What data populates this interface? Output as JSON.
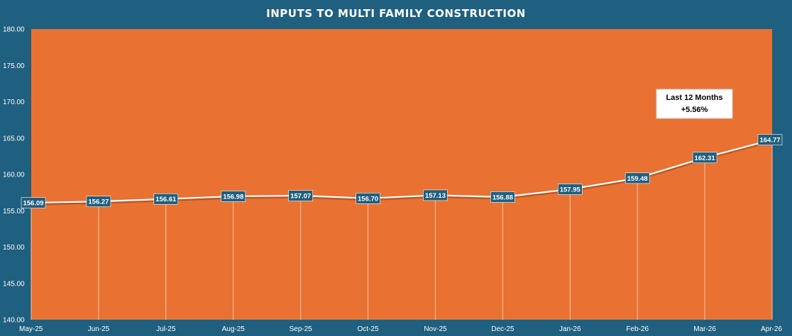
{
  "chart_data": {
    "type": "line",
    "title": "INPUTS TO MULTI FAMILY CONSTRUCTION",
    "xlabel": "",
    "ylabel": "",
    "categories": [
      "May-25",
      "Jun-25",
      "Jul-25",
      "Aug-25",
      "Sep-25",
      "Oct-25",
      "Nov-25",
      "Dec-25",
      "Jan-26",
      "Feb-26",
      "Mar-26",
      "Apr-26"
    ],
    "series": [
      {
        "values": [
          156.09,
          156.27,
          156.61,
          156.98,
          157.07,
          156.7,
          157.13,
          156.88,
          157.95,
          159.48,
          162.31,
          164.77
        ],
        "labels": [
          "156.09",
          "156.27",
          "156.61",
          "156.98",
          "157.07",
          "156.70",
          "157.13",
          "156.88",
          "157.95",
          "159.48",
          "162.31",
          "164.77"
        ]
      }
    ],
    "ylim": [
      140,
      180
    ],
    "yticks": [
      "140.00",
      "145.00",
      "150.00",
      "155.00",
      "160.00",
      "165.00",
      "170.00",
      "175.00",
      "180.00"
    ],
    "grid": false,
    "drop_lines": true,
    "annotation": {
      "line1": "Last 12 Months",
      "line2": "+5.56%"
    },
    "colors": {
      "background": "#1f5f7f",
      "plot_area": "#e97132",
      "line": "#ffffff",
      "label_box": "#1f5f7f",
      "annotation_box": "#ffffff"
    }
  }
}
